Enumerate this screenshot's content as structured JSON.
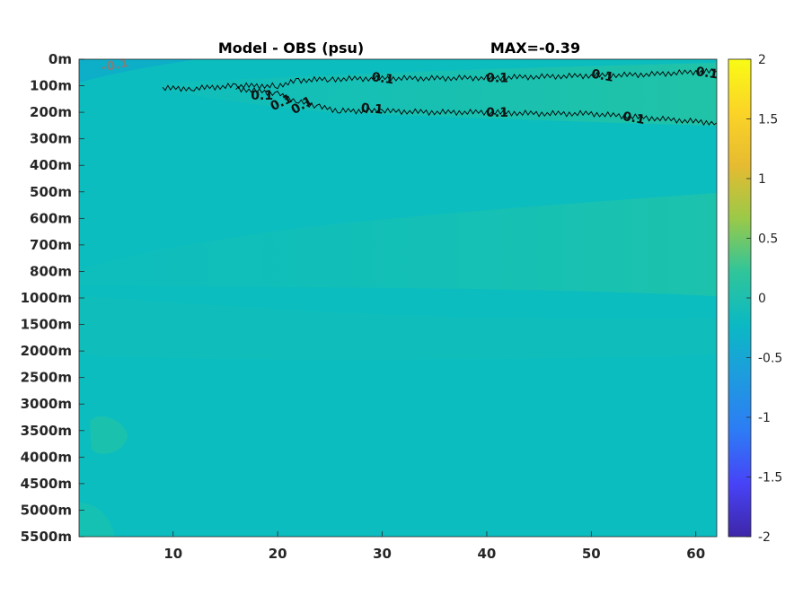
{
  "chart_data": {
    "type": "heatmap",
    "title": "Model - OBS (psu)",
    "annotation": "MAX=-0.39",
    "x": {
      "ticks": [
        10,
        20,
        30,
        40,
        50,
        60
      ],
      "tick_labels": [
        "10",
        "20",
        "30",
        "40",
        "50",
        "60"
      ],
      "range": [
        1,
        62
      ]
    },
    "y": {
      "reversed": true,
      "tick_labels": [
        "0m",
        "100m",
        "200m",
        "300m",
        "400m",
        "500m",
        "600m",
        "700m",
        "800m",
        "1000m",
        "1500m",
        "2000m",
        "2500m",
        "3000m",
        "3500m",
        "4000m",
        "4500m",
        "5000m",
        "5500m"
      ]
    },
    "colorbar": {
      "range": [
        -2,
        2
      ],
      "ticks": [
        2,
        1.5,
        1,
        0.5,
        0,
        -0.5,
        -1,
        -1.5,
        -2
      ],
      "tick_labels": [
        "2",
        "1.5",
        "1",
        "0.5",
        "0",
        "-0.5",
        "-1",
        "-1.5",
        "-2"
      ],
      "colormap": "parula",
      "colors": [
        "#3e26a8",
        "#4743f7",
        "#2d7cf5",
        "#1e9bdf",
        "#0bb9c3",
        "#30c59a",
        "#9bc948",
        "#e6bb31",
        "#fbd427",
        "#f9fb15"
      ]
    },
    "background_value": 0.02,
    "contour_lines": [
      {
        "level": 0.1,
        "x": [
          9,
          12,
          16,
          20,
          22,
          25,
          30,
          35,
          40,
          45,
          50,
          55,
          60,
          62
        ],
        "depth_index": [
          1.1,
          1.1,
          1.0,
          1.0,
          0.8,
          0.75,
          0.72,
          0.72,
          0.7,
          0.66,
          0.62,
          0.58,
          0.48,
          0.45
        ]
      },
      {
        "level": 0.1,
        "x": [
          16,
          20,
          22,
          24,
          26,
          30,
          35,
          40,
          45,
          50,
          55,
          60,
          62
        ],
        "depth_index": [
          1.1,
          1.3,
          1.6,
          1.8,
          1.95,
          1.95,
          2.0,
          2.0,
          2.05,
          2.05,
          2.2,
          2.35,
          2.4
        ]
      }
    ],
    "contour_labels": [
      {
        "text": "-0.1",
        "x": 4.5,
        "depth_index": 0.2,
        "rotate": -12,
        "color": "#7f7f7f"
      },
      {
        "text": "0.1",
        "x": 30,
        "depth_index": 0.7,
        "rotate": 8,
        "color": "#111111"
      },
      {
        "text": "0.1",
        "x": 41,
        "depth_index": 0.7,
        "rotate": 0,
        "color": "#111111"
      },
      {
        "text": "0.1",
        "x": 51,
        "depth_index": 0.6,
        "rotate": 10,
        "color": "#111111"
      },
      {
        "text": "0.1",
        "x": 61,
        "depth_index": 0.5,
        "rotate": 8,
        "color": "#111111"
      },
      {
        "text": "0.1",
        "x": 18.5,
        "depth_index": 1.35,
        "rotate": 0,
        "color": "#111111"
      },
      {
        "text": "0.1",
        "x": 20.5,
        "depth_index": 1.6,
        "rotate": -25,
        "color": "#111111"
      },
      {
        "text": "0.1",
        "x": 22.5,
        "depth_index": 1.7,
        "rotate": -30,
        "color": "#111111"
      },
      {
        "text": "0.1",
        "x": 29,
        "depth_index": 1.85,
        "rotate": 5,
        "color": "#111111"
      },
      {
        "text": "0.1",
        "x": 41,
        "depth_index": 2.0,
        "rotate": 0,
        "color": "#111111"
      },
      {
        "text": "0.1",
        "x": 54,
        "depth_index": 2.2,
        "rotate": 10,
        "color": "#111111"
      }
    ]
  }
}
